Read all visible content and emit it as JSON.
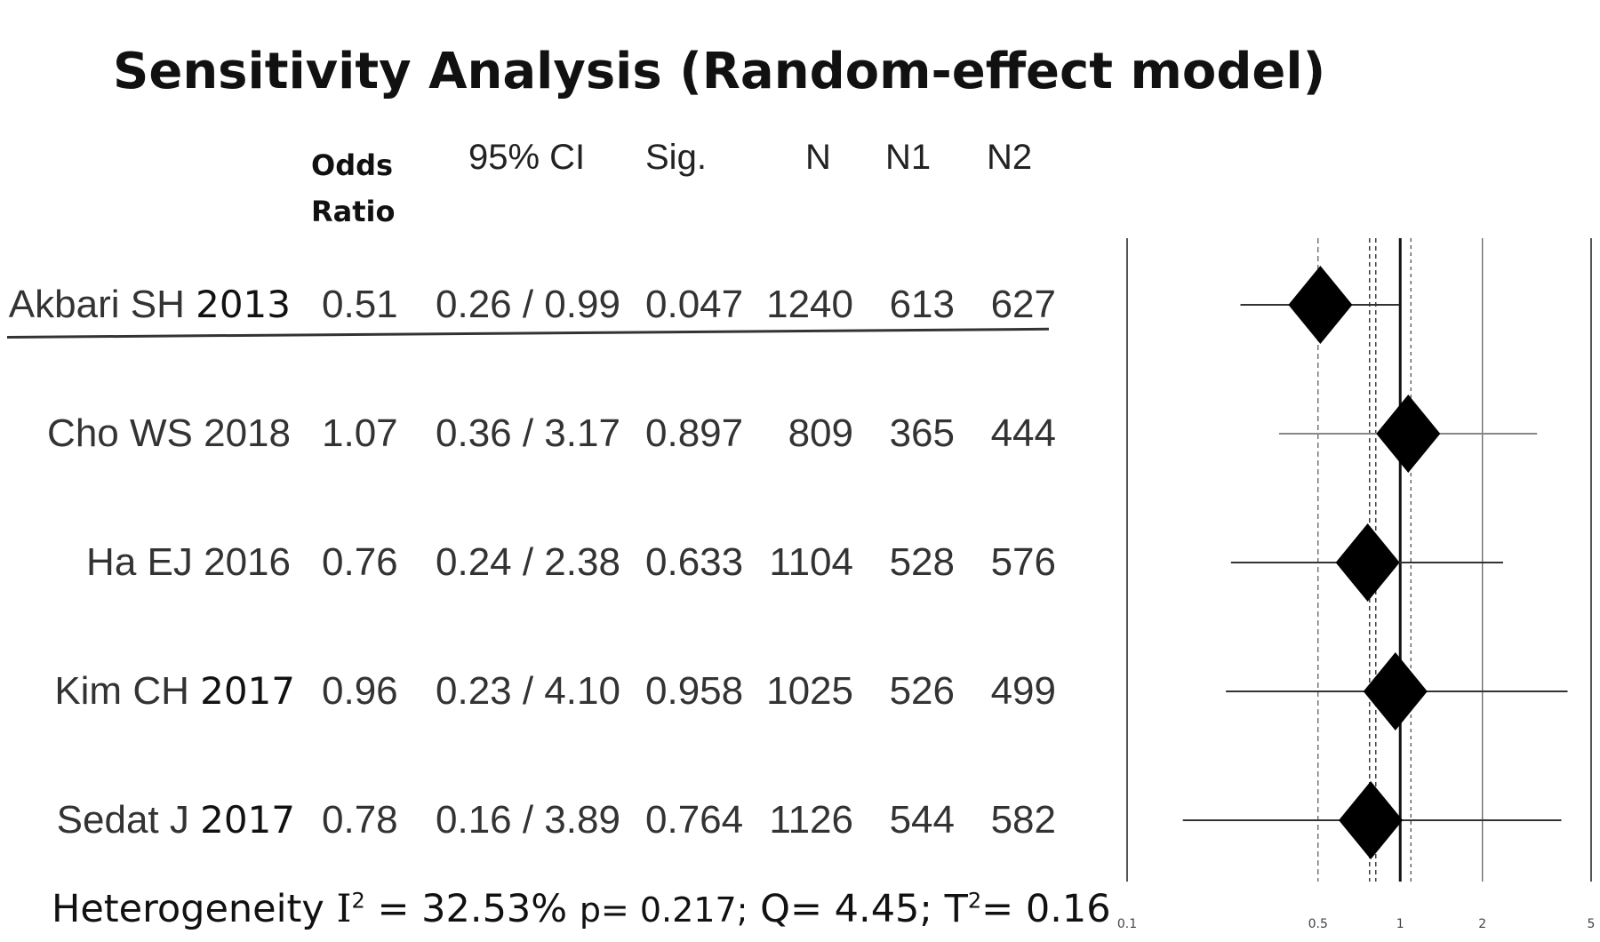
{
  "title": "Sensitivity Analysis (Random-effect model)",
  "columns": {
    "odds_ratio_line1": "Odds",
    "odds_ratio_line2": "Ratio",
    "ci": "95% CI",
    "sig": "Sig.",
    "n": "N",
    "n1": "N1",
    "n2": "N2"
  },
  "rows": [
    {
      "author": "Akbari SH",
      "year": "2013",
      "or": "0.51",
      "ci": "0.26 / 0.99",
      "sig": "0.047",
      "n": "1240",
      "n1": "613",
      "n2": "627"
    },
    {
      "author": "Cho WS",
      "year": "2018",
      "or": "1.07",
      "ci": "0.36 / 3.17",
      "sig": "0.897",
      "n": "809",
      "n1": "365",
      "n2": "444"
    },
    {
      "author": "Ha EJ",
      "year": "2016",
      "or": "0.76",
      "ci": "0.24 / 2.38",
      "sig": "0.633",
      "n": "1104",
      "n1": "528",
      "n2": "576"
    },
    {
      "author": "Kim CH",
      "year": "2017",
      "or": "0.96",
      "ci": "0.23 / 4.10",
      "sig": "0.958",
      "n": "1025",
      "n1": "526",
      "n2": "499"
    },
    {
      "author": "Sedat J",
      "year": "2017",
      "or": "0.78",
      "ci": "0.16 / 3.89",
      "sig": "0.764",
      "n": "1126",
      "n1": "544",
      "n2": "582"
    }
  ],
  "footer": {
    "label": "Heterogeneity",
    "i2_symbol": "I",
    "i2_value": "= 32.53%",
    "p": "p= 0.217;",
    "q": "Q= 4.45;",
    "t_symbol": "T",
    "t2_value": "= 0.16",
    "sup": "2"
  },
  "chart_data": {
    "type": "forest",
    "scale": "log",
    "xlim": [
      0.1,
      5
    ],
    "x_ticks": [
      "0.1",
      "0.5",
      "1",
      "2",
      "5"
    ],
    "x_tick_values": [
      0.1,
      0.5,
      1,
      2,
      5
    ],
    "null_line": 1,
    "pooled_or": 0.79,
    "series": [
      {
        "label": "Akbari SH 2013",
        "or": 0.51,
        "ci_low": 0.26,
        "ci_high": 0.99
      },
      {
        "label": "Cho WS 2018",
        "or": 1.07,
        "ci_low": 0.36,
        "ci_high": 3.17
      },
      {
        "label": "Ha EJ 2016",
        "or": 0.76,
        "ci_low": 0.24,
        "ci_high": 2.38
      },
      {
        "label": "Kim CH 2017",
        "or": 0.96,
        "ci_low": 0.23,
        "ci_high": 4.1
      },
      {
        "label": "Sedat J 2017",
        "or": 0.78,
        "ci_low": 0.16,
        "ci_high": 3.89
      }
    ]
  }
}
